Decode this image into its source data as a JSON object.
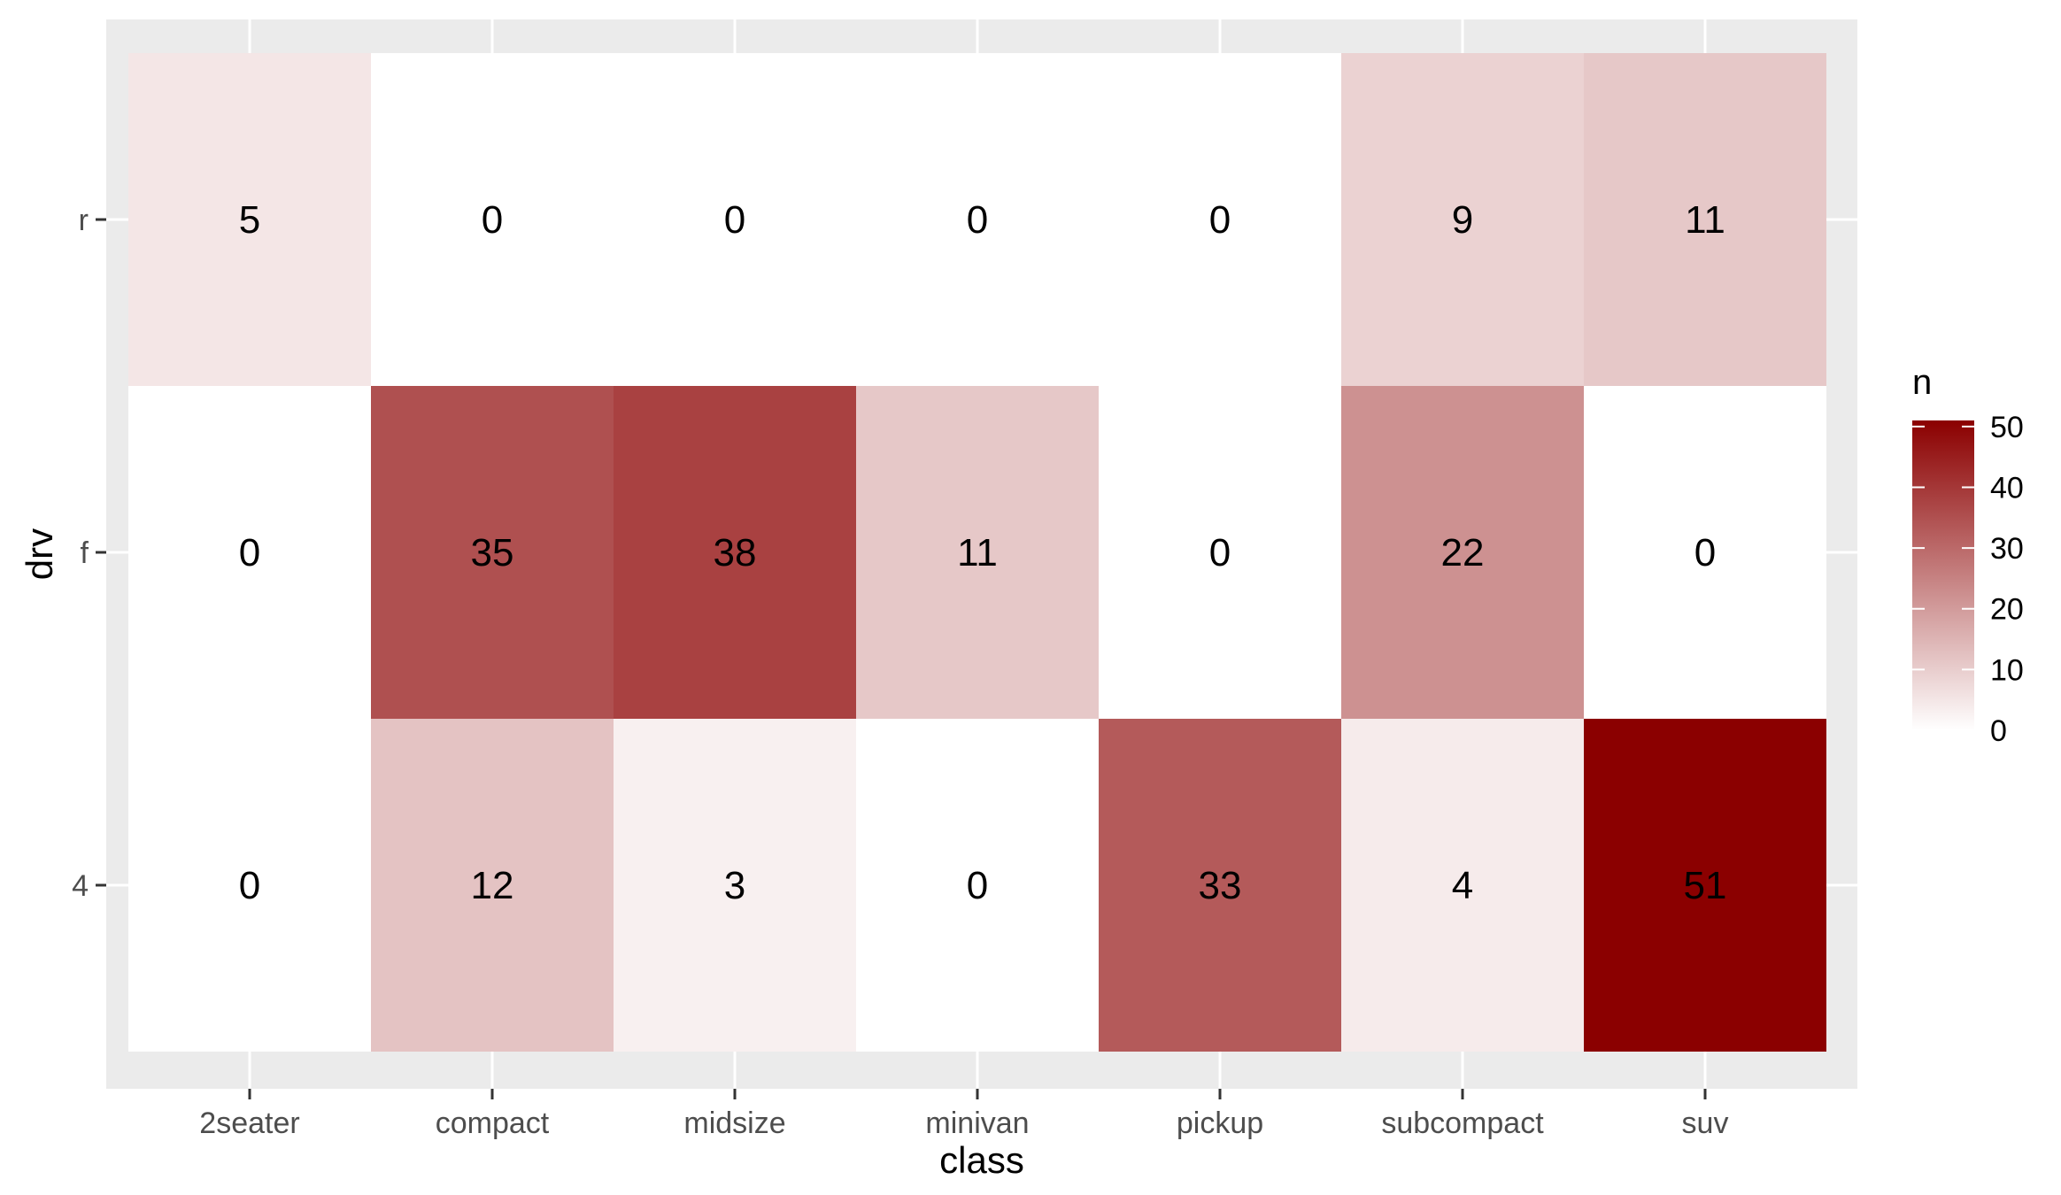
{
  "chart_data": {
    "type": "heatmap",
    "xlabel": "class",
    "ylabel": "drv",
    "x_categories": [
      "2seater",
      "compact",
      "midsize",
      "minivan",
      "pickup",
      "subcompact",
      "suv"
    ],
    "y_categories": [
      "r",
      "f",
      "4"
    ],
    "values": [
      [
        5,
        0,
        0,
        0,
        0,
        9,
        11
      ],
      [
        0,
        35,
        38,
        11,
        0,
        22,
        0
      ],
      [
        0,
        12,
        3,
        0,
        33,
        4,
        51
      ]
    ],
    "legend": {
      "title": "n",
      "range": [
        0,
        51
      ],
      "ticks": [
        0,
        10,
        20,
        30,
        40,
        50
      ],
      "low_color": "#ffffff",
      "high_color": "#8b0000",
      "placement": "right"
    },
    "panel_background": "#ebebeb",
    "grid_color": "#ffffff",
    "grid": true
  }
}
